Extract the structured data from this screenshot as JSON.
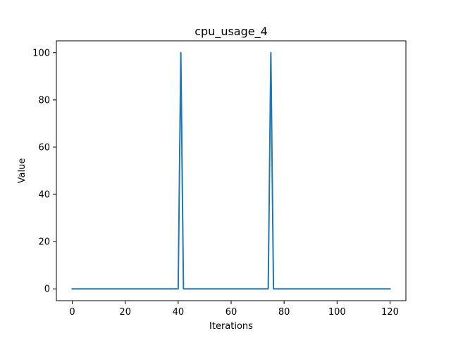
{
  "chart_data": {
    "type": "line",
    "title": "cpu_usage_4",
    "xlabel": "Iterations",
    "ylabel": "Value",
    "xlim": [
      -6,
      126
    ],
    "ylim": [
      -5,
      105
    ],
    "xticks": [
      0,
      20,
      40,
      60,
      80,
      100,
      120
    ],
    "yticks": [
      0,
      20,
      40,
      60,
      80,
      100
    ],
    "grid": false,
    "series": [
      {
        "color": "#1f77b4",
        "points": [
          [
            0,
            0
          ],
          [
            40,
            0
          ],
          [
            41,
            100
          ],
          [
            42,
            0
          ],
          [
            74,
            0
          ],
          [
            75,
            100
          ],
          [
            76,
            0
          ],
          [
            120,
            0
          ]
        ]
      }
    ]
  }
}
